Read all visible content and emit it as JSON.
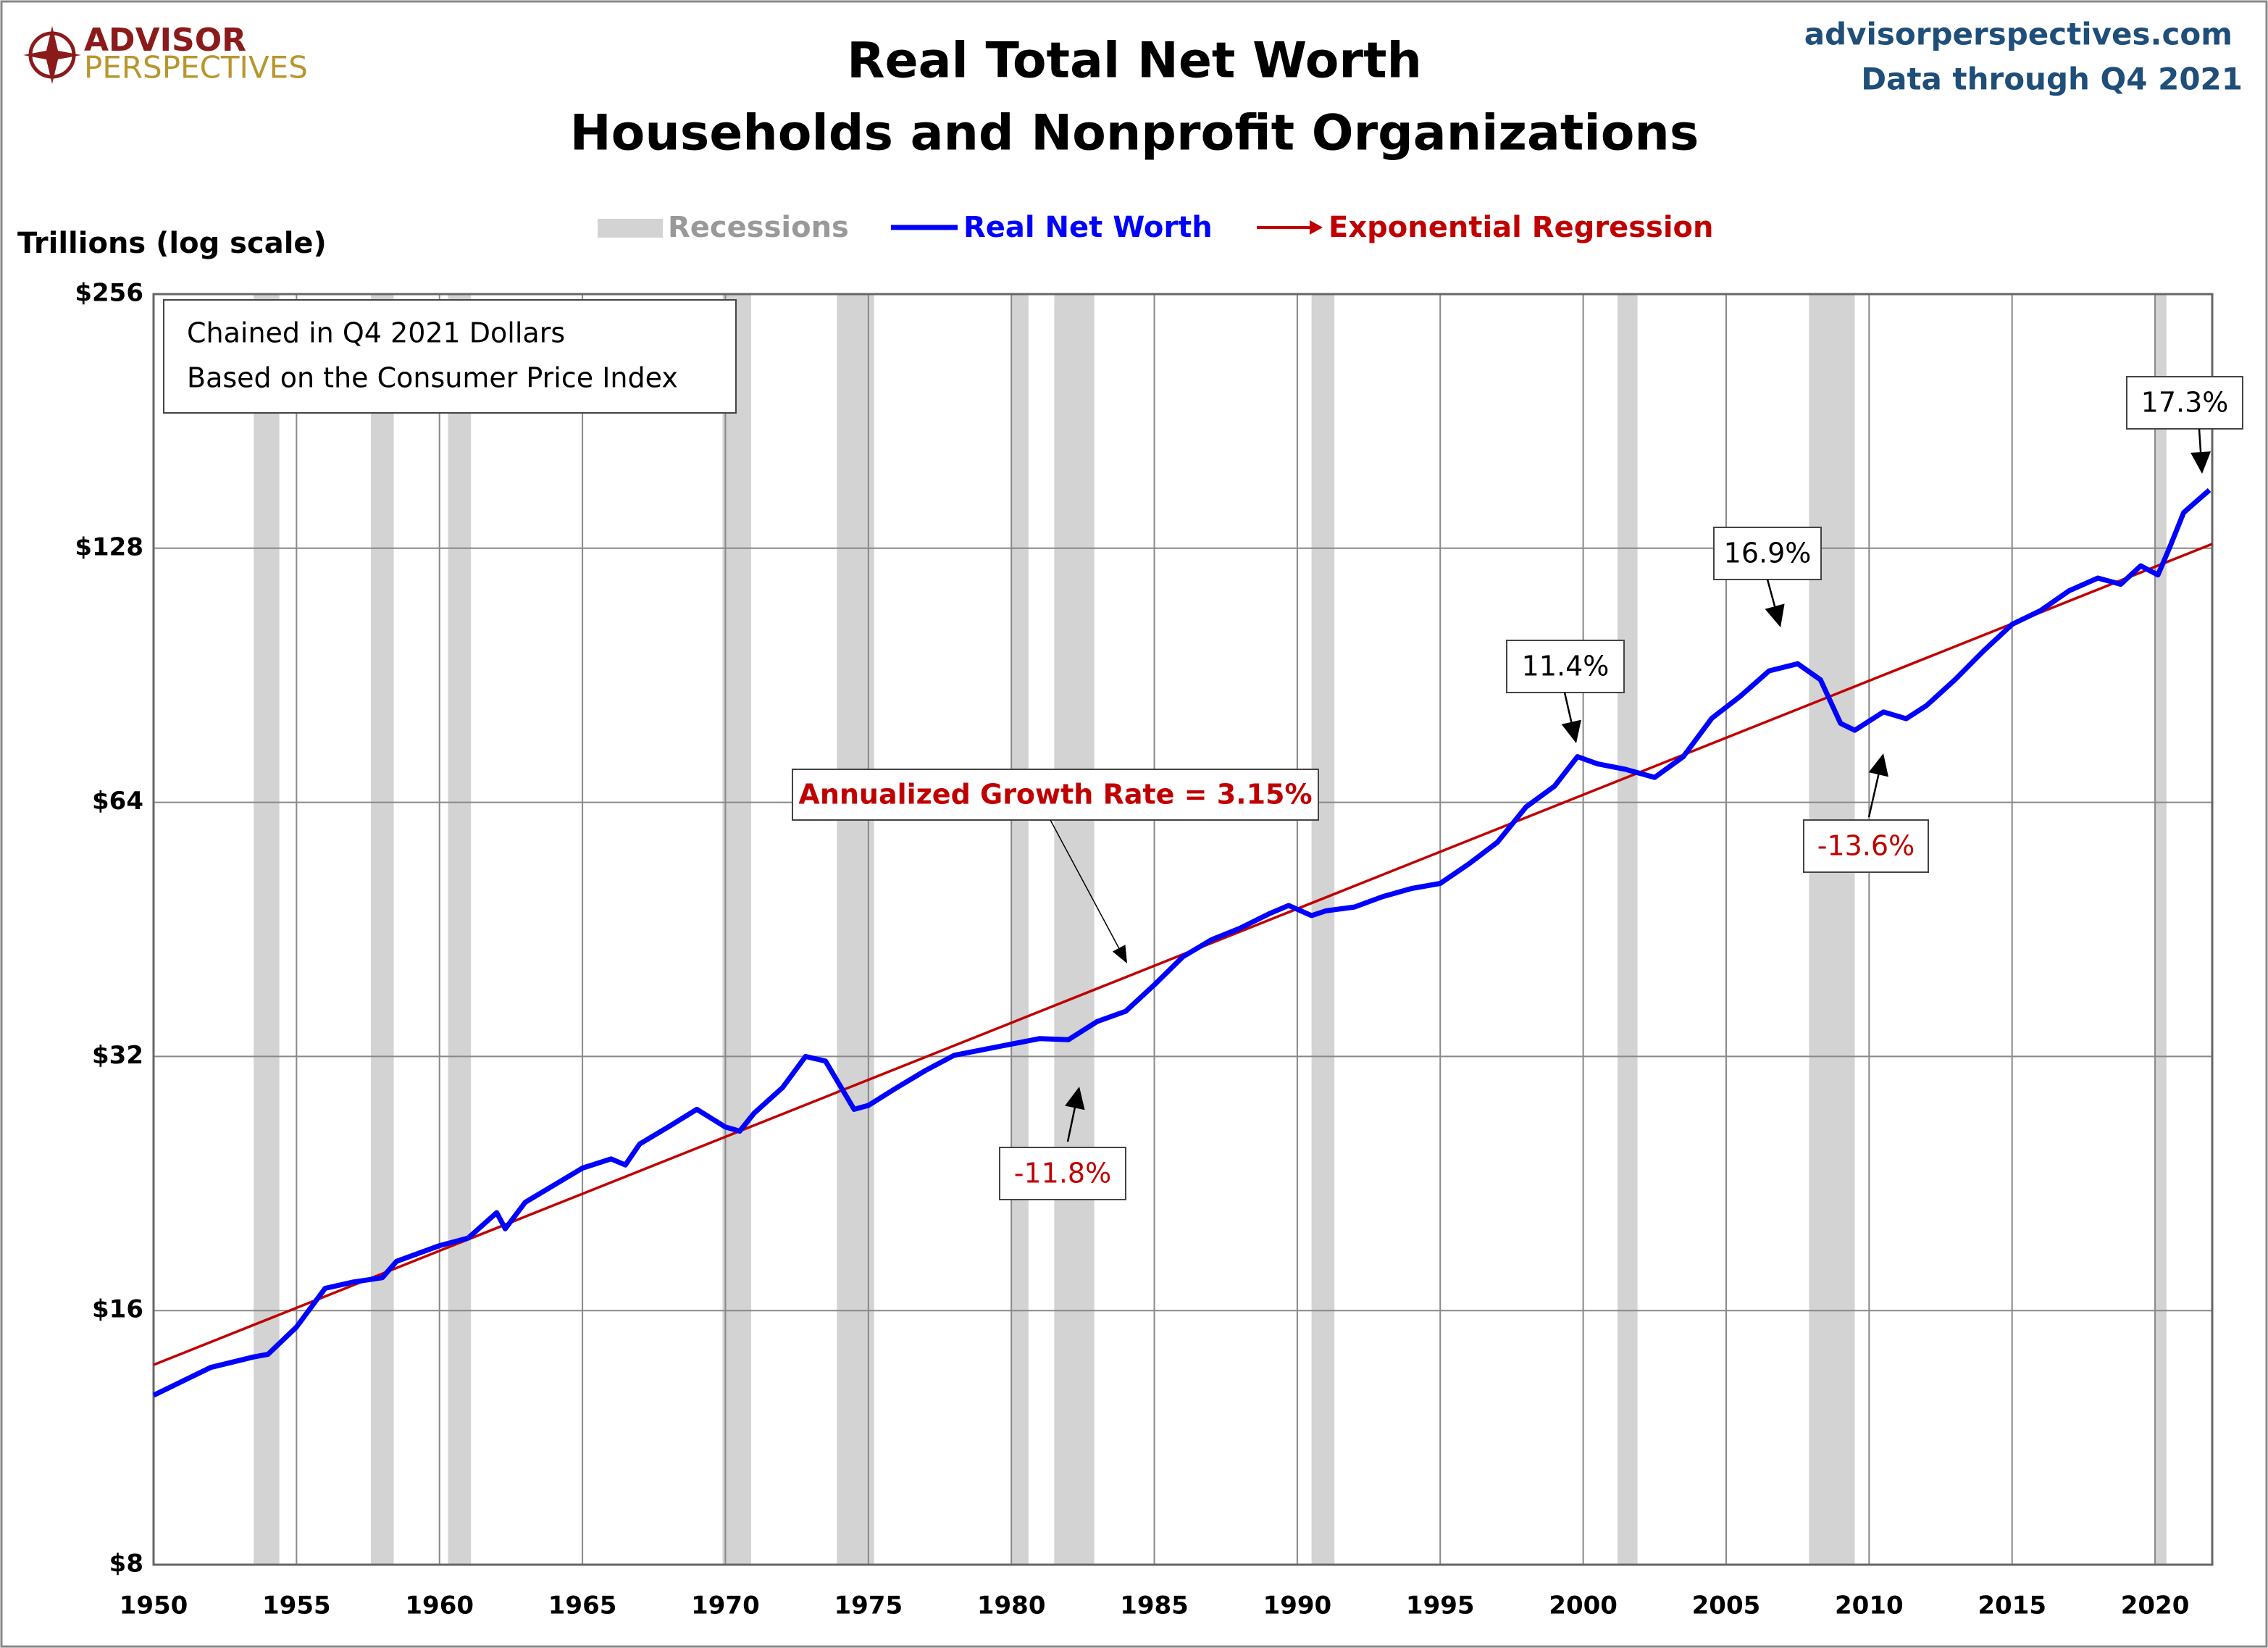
{
  "brand": {
    "name_top": "ADVISOR",
    "name_bottom": "PERSPECTIVES"
  },
  "site": "advisorperspectives.com",
  "data_note": "Data through Q4 2021",
  "chart_data": {
    "type": "line",
    "title": [
      "Real Total Net Worth",
      "Households and Nonprofit Organizations"
    ],
    "y_label": "Trillions (log scale)",
    "log_scale": true,
    "grid": true,
    "xlim": [
      1950,
      2022
    ],
    "xticks": [
      1950,
      1955,
      1960,
      1965,
      1970,
      1975,
      1980,
      1985,
      1990,
      1995,
      2000,
      2005,
      2010,
      2015,
      2020
    ],
    "ylim": [
      8,
      256
    ],
    "yticks": [
      {
        "value": 8,
        "label": "$8"
      },
      {
        "value": 16,
        "label": "$16"
      },
      {
        "value": 32,
        "label": "$32"
      },
      {
        "value": 64,
        "label": "$64"
      },
      {
        "value": 128,
        "label": "$128"
      },
      {
        "value": 256,
        "label": "$256"
      }
    ],
    "recessions": {
      "name": "Recessions",
      "color": "#d3d3d3",
      "spans": [
        [
          1953.5,
          1954.4
        ],
        [
          1957.6,
          1958.4
        ],
        [
          1960.3,
          1961.1
        ],
        [
          1969.9,
          1970.9
        ],
        [
          1973.9,
          1975.2
        ],
        [
          1980.0,
          1980.6
        ],
        [
          1981.5,
          1982.9
        ],
        [
          1990.5,
          1991.3
        ],
        [
          2001.2,
          2001.9
        ],
        [
          2007.9,
          2009.5
        ],
        [
          2020.0,
          2020.4
        ]
      ]
    },
    "series": [
      {
        "name": "Real Net Worth",
        "color": "#0000ff",
        "x": [
          1950,
          1952,
          1953.5,
          1954,
          1955,
          1956,
          1957,
          1958,
          1958.5,
          1960,
          1961,
          1962,
          1962.3,
          1963,
          1965,
          1966,
          1966.5,
          1967,
          1968,
          1969,
          1970,
          1970.5,
          1971,
          1972,
          1972.8,
          1973.5,
          1974.5,
          1975,
          1976,
          1977,
          1978,
          1980,
          1981,
          1982,
          1983,
          1984,
          1985,
          1986,
          1987,
          1988,
          1989,
          1989.7,
          1990.5,
          1991,
          1992,
          1993,
          1994,
          1995,
          1996,
          1997,
          1998,
          1999,
          1999.8,
          2000.5,
          2001.5,
          2002.5,
          2003.5,
          2004.5,
          2005.5,
          2006.5,
          2007.5,
          2008.3,
          2009,
          2009.5,
          2010.5,
          2011.3,
          2012,
          2013,
          2014,
          2015,
          2016,
          2017,
          2018,
          2018.8,
          2019.5,
          2020.1,
          2020.5,
          2021,
          2021.5,
          2021.9
        ],
        "values": [
          12.7,
          13.7,
          14.1,
          14.2,
          15.3,
          17.0,
          17.3,
          17.5,
          18.3,
          19.1,
          19.5,
          20.9,
          20.0,
          21.5,
          23.6,
          24.2,
          23.8,
          25.2,
          26.4,
          27.7,
          26.4,
          26.1,
          27.4,
          29.4,
          32.0,
          31.6,
          27.7,
          28.0,
          29.4,
          30.8,
          32.1,
          33.1,
          33.6,
          33.5,
          35.2,
          36.2,
          38.9,
          42.0,
          44.0,
          45.4,
          47.2,
          48.3,
          47.0,
          47.6,
          48.1,
          49.5,
          50.6,
          51.3,
          54.1,
          57.4,
          63.2,
          66.9,
          72.5,
          71.1,
          70.0,
          68.5,
          72.5,
          80.5,
          85.5,
          91.6,
          93.4,
          89.4,
          79.4,
          77.9,
          81.9,
          80.4,
          83.3,
          89.4,
          96.7,
          104,
          108,
          114,
          118,
          116,
          122,
          119,
          128,
          141,
          146,
          150
        ]
      },
      {
        "name": "Exponential Regression",
        "color": "#c00000",
        "x": [
          1950,
          2022
        ],
        "values": [
          13.8,
          129.5
        ]
      }
    ],
    "notes": [
      "Chained in Q4 2021 Dollars",
      "Based on the Consumer Price Index"
    ],
    "annotations": [
      "Annualized Growth Rate = 3.15%",
      "-11.8%",
      "11.4%",
      "16.9%",
      "-13.6%",
      "17.3%"
    ]
  }
}
